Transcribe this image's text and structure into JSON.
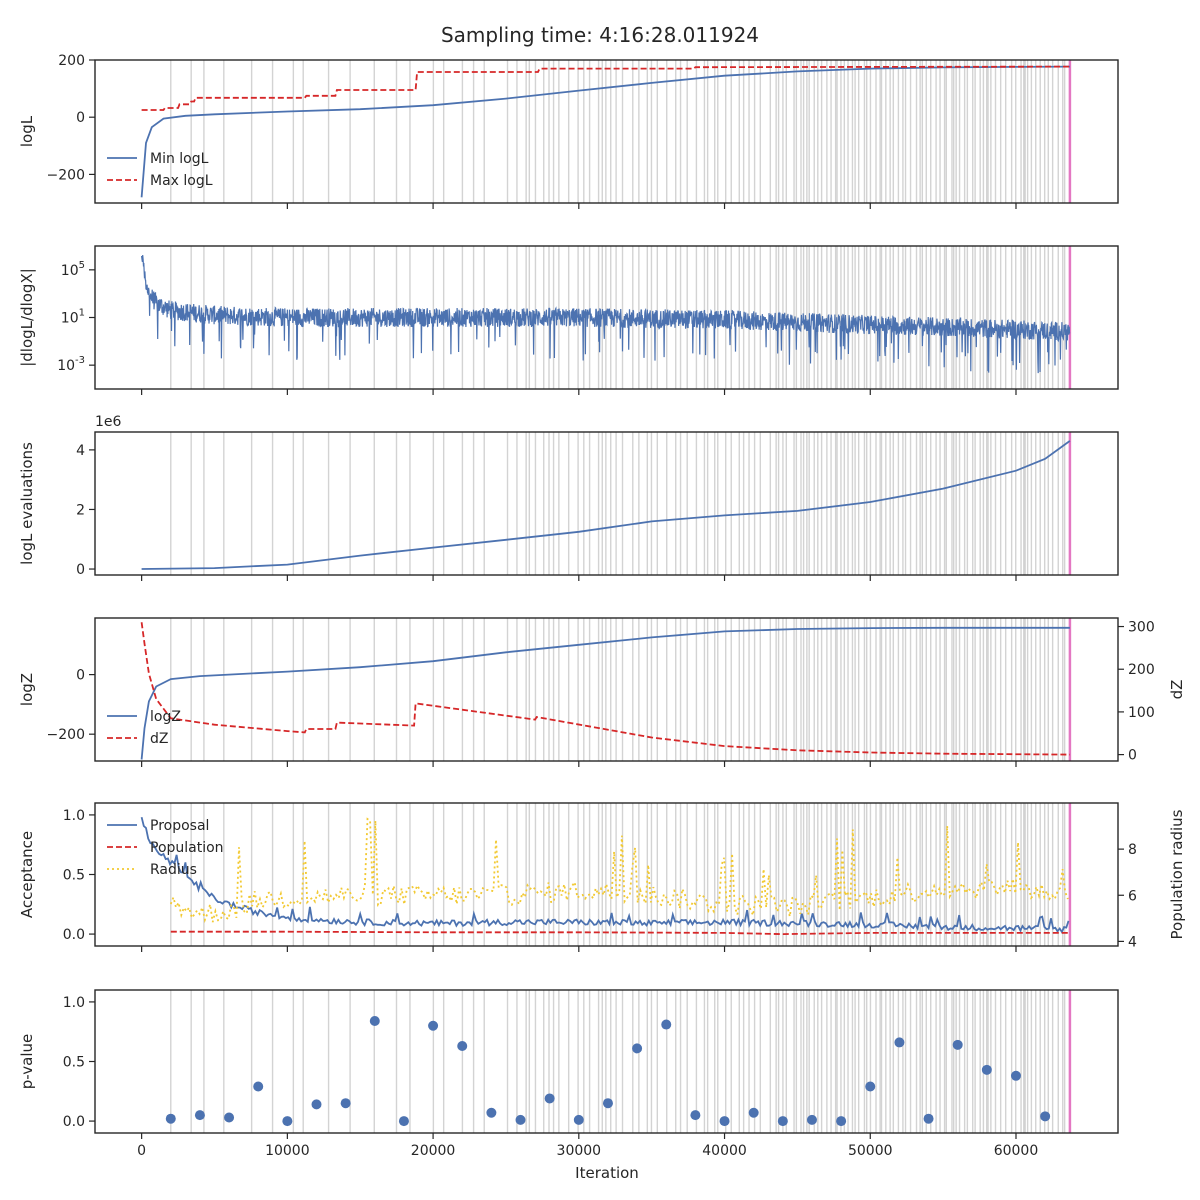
{
  "title": "Sampling time: 4:16:28.011924",
  "xlabel": "Iteration",
  "x_ticks": [
    "0",
    "10000",
    "20000",
    "30000",
    "40000",
    "50000",
    "60000"
  ],
  "x_range": [
    -3200,
    67000
  ],
  "final_iteration": 63700,
  "colors": {
    "blue": "#4c72b0",
    "red": "#d62728",
    "yellow": "#f2c932",
    "grey": "#d3d3d3",
    "pink": "#e377c2"
  },
  "chart_data": [
    {
      "type": "line",
      "ylabel": "logL",
      "ylim": [
        -300,
        200
      ],
      "y_ticks": [
        {
          "v": 200,
          "label": "200"
        },
        {
          "v": 0,
          "label": "0"
        },
        {
          "v": -200,
          "label": "−200"
        }
      ],
      "legend": "lower-left",
      "series": [
        {
          "name": "Min logL",
          "style": "solid",
          "color": "#4c72b0",
          "x": [
            0,
            300,
            700,
            1500,
            3000,
            5000,
            10000,
            15000,
            20000,
            25000,
            30000,
            35000,
            40000,
            45000,
            50000,
            55000,
            60000,
            63700
          ],
          "y": [
            -280,
            -90,
            -35,
            -5,
            5,
            10,
            20,
            28,
            42,
            65,
            93,
            120,
            145,
            160,
            170,
            174,
            176,
            177
          ]
        },
        {
          "name": "Max logL",
          "style": "dashed",
          "color": "#d62728",
          "x": [
            0,
            1500,
            1600,
            2500,
            2600,
            3300,
            3400,
            3600,
            3700,
            11200,
            11300,
            13300,
            13400,
            18800,
            18900,
            27200,
            27300,
            37900,
            38000,
            63700
          ],
          "y": [
            25,
            25,
            32,
            32,
            45,
            45,
            55,
            55,
            68,
            68,
            75,
            75,
            95,
            95,
            158,
            158,
            170,
            170,
            175,
            177
          ]
        }
      ]
    },
    {
      "type": "line",
      "ylabel": "|dlogL/dlogX|",
      "yscale": "log",
      "ylim_log10": [
        -5,
        7
      ],
      "y_ticks": [
        {
          "v": 5,
          "label": "10^5"
        },
        {
          "v": 1,
          "label": "10^1"
        },
        {
          "v": -3,
          "label": "10^-3"
        }
      ],
      "series": [
        {
          "name": "",
          "style": "noisy",
          "color": "#4c72b0",
          "x": [
            0,
            200,
            500,
            1000,
            2000,
            5000,
            10000,
            20000,
            30000,
            40000,
            50000,
            60000,
            63700
          ],
          "y_log10": [
            6,
            4.5,
            3,
            2.2,
            1.6,
            1.2,
            1.0,
            1.0,
            1.0,
            0.8,
            0.4,
            0.0,
            -0.2
          ]
        }
      ]
    },
    {
      "type": "line",
      "ylabel": "logL evaluations",
      "offset_label": "1e6",
      "ylim": [
        -0.2,
        4.6
      ],
      "y_ticks": [
        {
          "v": 4,
          "label": "4"
        },
        {
          "v": 2,
          "label": "2"
        },
        {
          "v": 0,
          "label": "0"
        }
      ],
      "series": [
        {
          "name": "",
          "style": "solid",
          "color": "#4c72b0",
          "x": [
            0,
            5000,
            10000,
            15000,
            20000,
            25000,
            30000,
            35000,
            40000,
            45000,
            50000,
            55000,
            60000,
            62000,
            63700
          ],
          "y": [
            0.0,
            0.03,
            0.15,
            0.45,
            0.72,
            0.98,
            1.25,
            1.6,
            1.8,
            1.95,
            2.25,
            2.7,
            3.3,
            3.7,
            4.3
          ]
        }
      ]
    },
    {
      "type": "line",
      "ylabel": "logZ",
      "ylim": [
        -290,
        190
      ],
      "y_ticks": [
        {
          "v": 0,
          "label": "0"
        },
        {
          "v": -200,
          "label": "−200"
        }
      ],
      "y2label": "dZ",
      "y2lim": [
        -15,
        320
      ],
      "y2_ticks": [
        {
          "v": 300,
          "label": "300"
        },
        {
          "v": 200,
          "label": "200"
        },
        {
          "v": 100,
          "label": "100"
        },
        {
          "v": 0,
          "label": "0"
        }
      ],
      "legend": "lower-left",
      "series": [
        {
          "name": "logZ",
          "style": "solid",
          "axis": "left",
          "color": "#4c72b0",
          "x": [
            0,
            200,
            500,
            1000,
            2000,
            4000,
            10000,
            15000,
            20000,
            25000,
            30000,
            35000,
            40000,
            45000,
            50000,
            55000,
            63700
          ],
          "y": [
            -285,
            -180,
            -90,
            -40,
            -15,
            -5,
            10,
            25,
            45,
            75,
            100,
            125,
            145,
            153,
            156,
            157,
            157
          ]
        },
        {
          "name": "dZ",
          "style": "dashed",
          "axis": "right",
          "color": "#d62728",
          "x": [
            0,
            200,
            500,
            1000,
            2000,
            5000,
            10000,
            11200,
            11300,
            13300,
            13400,
            18700,
            18800,
            27000,
            27100,
            35000,
            40000,
            45000,
            50000,
            55000,
            63700
          ],
          "y": [
            310,
            260,
            190,
            130,
            85,
            70,
            55,
            52,
            60,
            60,
            75,
            68,
            120,
            82,
            88,
            40,
            20,
            10,
            5,
            2,
            0
          ]
        }
      ]
    },
    {
      "type": "line",
      "ylabel": "Acceptance",
      "ylim": [
        -0.1,
        1.1
      ],
      "y_ticks": [
        {
          "v": 1.0,
          "label": "1.0"
        },
        {
          "v": 0.5,
          "label": "0.5"
        },
        {
          "v": 0.0,
          "label": "0.0"
        }
      ],
      "y2label": "Population radius",
      "y2lim": [
        3.8,
        10
      ],
      "y2_ticks": [
        {
          "v": 8,
          "label": "8"
        },
        {
          "v": 6,
          "label": "6"
        },
        {
          "v": 4,
          "label": "4"
        }
      ],
      "legend": "top-left",
      "series": [
        {
          "name": "Proposal",
          "style": "solid",
          "axis": "left",
          "color": "#4c72b0",
          "x": [
            0,
            500,
            1000,
            1500,
            2000,
            3000,
            4000,
            5000,
            6000,
            8000,
            10000,
            12000,
            15000,
            20000,
            25000,
            30000,
            35000,
            40000,
            45000,
            50000,
            55000,
            60000,
            63700
          ],
          "y": [
            0.98,
            0.8,
            0.7,
            0.65,
            0.6,
            0.5,
            0.38,
            0.3,
            0.25,
            0.18,
            0.14,
            0.12,
            0.1,
            0.09,
            0.1,
            0.1,
            0.09,
            0.1,
            0.09,
            0.08,
            0.06,
            0.05,
            0.04
          ]
        },
        {
          "name": "Population",
          "style": "dashed",
          "axis": "left",
          "color": "#d62728",
          "x": [
            2000,
            10000,
            20000,
            30000,
            40000,
            44000,
            50000,
            60000,
            63700
          ],
          "y": [
            0.02,
            0.02,
            0.015,
            0.015,
            0.01,
            0.0,
            0.01,
            0.01,
            0.01
          ]
        },
        {
          "name": "Radius",
          "style": "dotted",
          "axis": "right",
          "color": "#f2c932",
          "x": [
            2000,
            4000,
            6000,
            8000,
            10000,
            15000,
            20000,
            25000,
            30000,
            35000,
            40000,
            45000,
            50000,
            55000,
            60000,
            63700
          ],
          "y": [
            5.7,
            5.2,
            5.3,
            5.8,
            5.9,
            6.0,
            6.0,
            6.0,
            6.2,
            6.0,
            5.6,
            5.5,
            5.9,
            6.3,
            6.3,
            6.0
          ]
        }
      ]
    },
    {
      "type": "scatter",
      "ylabel": "p-value",
      "ylim": [
        -0.1,
        1.1
      ],
      "y_ticks": [
        {
          "v": 1.0,
          "label": "1.0"
        },
        {
          "v": 0.5,
          "label": "0.5"
        },
        {
          "v": 0.0,
          "label": "0.0"
        }
      ],
      "series": [
        {
          "name": "",
          "style": "points",
          "color": "#4c72b0",
          "x": [
            2000,
            4000,
            6000,
            8000,
            10000,
            12000,
            14000,
            16000,
            18000,
            20000,
            22000,
            24000,
            26000,
            28000,
            30000,
            32000,
            34000,
            36000,
            38000,
            40000,
            42000,
            44000,
            46000,
            48000,
            50000,
            52000,
            54000,
            56000,
            58000,
            60000,
            62000
          ],
          "y": [
            0.02,
            0.05,
            0.03,
            0.29,
            0.0,
            0.14,
            0.15,
            0.84,
            0.0,
            0.8,
            0.63,
            0.07,
            0.01,
            0.19,
            0.01,
            0.15,
            0.61,
            0.81,
            0.05,
            0.0,
            0.07,
            0.0,
            0.01,
            0.0,
            0.29,
            0.66,
            0.02,
            0.64,
            0.43,
            0.38,
            0.04
          ]
        }
      ]
    }
  ]
}
